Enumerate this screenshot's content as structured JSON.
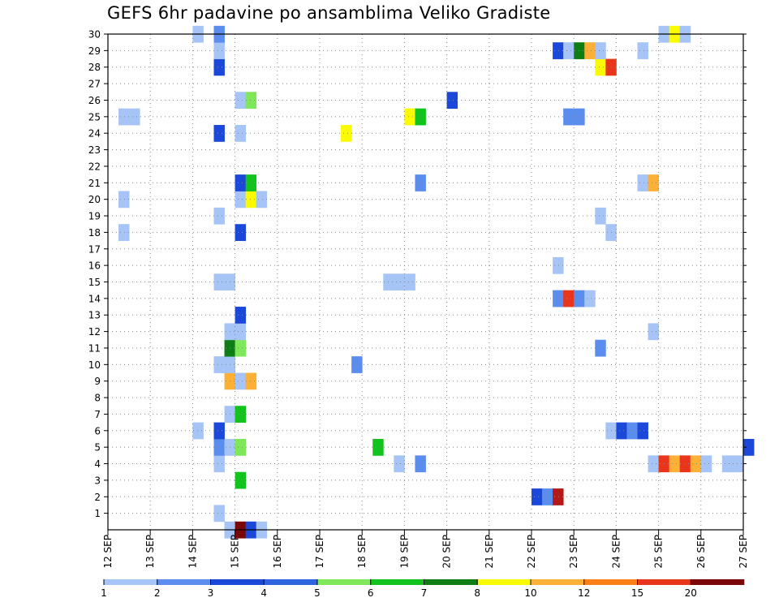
{
  "chart_data": {
    "type": "heatmap",
    "title": "GEFS 6hr padavine po ansamblima Veliko Gradiste",
    "xlabel": "",
    "ylabel": "",
    "x_tick_labels": [
      "12 SEP",
      "13 SEP",
      "14 SEP",
      "15 SEP",
      "16 SEP",
      "17 SEP",
      "18 SEP",
      "19 SEP",
      "20 SEP",
      "21 SEP",
      "22 SEP",
      "23 SEP",
      "24 SEP",
      "25 SEP",
      "26 SEP",
      "27 SEP"
    ],
    "y_tick_labels": [
      "1",
      "2",
      "3",
      "4",
      "5",
      "6",
      "7",
      "8",
      "9",
      "10",
      "11",
      "12",
      "13",
      "14",
      "15",
      "16",
      "17",
      "18",
      "19",
      "20",
      "21",
      "22",
      "23",
      "24",
      "25",
      "26",
      "27",
      "28",
      "29",
      "30"
    ],
    "y_range": [
      0,
      30
    ],
    "x_range_days": [
      0,
      15
    ],
    "step": "6hr",
    "grid": true,
    "legend_position": "bottom",
    "legend": {
      "labels": [
        "1",
        "2",
        "3",
        "4",
        "5",
        "6",
        "7",
        "8",
        "10",
        "12",
        "15",
        "20"
      ],
      "colors": [
        "#a6c4f5",
        "#5b8def",
        "#1b48d8",
        "#2e63e0",
        "#7ee85a",
        "#12c31e",
        "#0e7d14",
        "#fafa00",
        "#fcb035",
        "#fb7f14",
        "#e8351c",
        "#7a0808"
      ]
    },
    "levels": [
      {
        "label": "<1",
        "color": "#ffffff"
      },
      {
        "label": "1-2",
        "color": "#a6c4f5"
      },
      {
        "label": "2-3",
        "color": "#5b8def"
      },
      {
        "label": "3-4",
        "color": "#1b48d8"
      },
      {
        "label": "4-5",
        "color": "#7ee85a"
      },
      {
        "label": "5-6",
        "color": "#12c31e"
      },
      {
        "label": "6-7",
        "color": "#0e7d14"
      },
      {
        "label": "7-8",
        "color": "#fafa00"
      },
      {
        "label": "8-10",
        "color": "#fcb035"
      },
      {
        "label": "10-12",
        "color": "#fb7f14"
      },
      {
        "label": "12-15",
        "color": "#e8351c"
      },
      {
        "label": "15-20",
        "color": "#b41818"
      },
      {
        "label": ">20",
        "color": "#7a0808"
      }
    ],
    "cells": [
      {
        "m": 0,
        "d": "14 SEP",
        "h": 18,
        "lvl": 1
      },
      {
        "m": 0,
        "d": "15 SEP",
        "h": 0,
        "lvl": 12
      },
      {
        "m": 0,
        "d": "15 SEP",
        "h": 6,
        "lvl": 3
      },
      {
        "m": 0,
        "d": "15 SEP",
        "h": 12,
        "lvl": 1
      },
      {
        "m": 1,
        "d": "14 SEP",
        "h": 12,
        "lvl": 1
      },
      {
        "m": 2,
        "d": "22 SEP",
        "h": 0,
        "lvl": 3
      },
      {
        "m": 2,
        "d": "22 SEP",
        "h": 6,
        "lvl": 2
      },
      {
        "m": 2,
        "d": "22 SEP",
        "h": 12,
        "lvl": 11
      },
      {
        "m": 3,
        "d": "15 SEP",
        "h": 0,
        "lvl": 5
      },
      {
        "m": 4,
        "d": "14 SEP",
        "h": 12,
        "lvl": 1
      },
      {
        "m": 4,
        "d": "18 SEP",
        "h": 18,
        "lvl": 1
      },
      {
        "m": 4,
        "d": "19 SEP",
        "h": 6,
        "lvl": 2
      },
      {
        "m": 4,
        "d": "24 SEP",
        "h": 18,
        "lvl": 1
      },
      {
        "m": 4,
        "d": "25 SEP",
        "h": 0,
        "lvl": 10
      },
      {
        "m": 4,
        "d": "25 SEP",
        "h": 6,
        "lvl": 8
      },
      {
        "m": 4,
        "d": "25 SEP",
        "h": 12,
        "lvl": 10
      },
      {
        "m": 4,
        "d": "25 SEP",
        "h": 18,
        "lvl": 8
      },
      {
        "m": 4,
        "d": "26 SEP",
        "h": 0,
        "lvl": 1
      },
      {
        "m": 4,
        "d": "26 SEP",
        "h": 12,
        "lvl": 1
      },
      {
        "m": 4,
        "d": "26 SEP",
        "h": 18,
        "lvl": 1
      },
      {
        "m": 5,
        "d": "14 SEP",
        "h": 12,
        "lvl": 2
      },
      {
        "m": 5,
        "d": "14 SEP",
        "h": 18,
        "lvl": 1
      },
      {
        "m": 5,
        "d": "15 SEP",
        "h": 0,
        "lvl": 4
      },
      {
        "m": 5,
        "d": "18 SEP",
        "h": 6,
        "lvl": 5
      },
      {
        "m": 5,
        "d": "27 SEP",
        "h": 0,
        "lvl": 3
      },
      {
        "m": 6,
        "d": "14 SEP",
        "h": 0,
        "lvl": 1
      },
      {
        "m": 6,
        "d": "14 SEP",
        "h": 12,
        "lvl": 3
      },
      {
        "m": 6,
        "d": "23 SEP",
        "h": 18,
        "lvl": 1
      },
      {
        "m": 6,
        "d": "24 SEP",
        "h": 0,
        "lvl": 3
      },
      {
        "m": 6,
        "d": "24 SEP",
        "h": 6,
        "lvl": 2
      },
      {
        "m": 6,
        "d": "24 SEP",
        "h": 12,
        "lvl": 3
      },
      {
        "m": 7,
        "d": "14 SEP",
        "h": 18,
        "lvl": 1
      },
      {
        "m": 7,
        "d": "15 SEP",
        "h": 0,
        "lvl": 5
      },
      {
        "m": 9,
        "d": "14 SEP",
        "h": 18,
        "lvl": 8
      },
      {
        "m": 9,
        "d": "15 SEP",
        "h": 0,
        "lvl": 1
      },
      {
        "m": 9,
        "d": "15 SEP",
        "h": 6,
        "lvl": 8
      },
      {
        "m": 10,
        "d": "14 SEP",
        "h": 12,
        "lvl": 1
      },
      {
        "m": 10,
        "d": "14 SEP",
        "h": 18,
        "lvl": 1
      },
      {
        "m": 10,
        "d": "17 SEP",
        "h": 18,
        "lvl": 2
      },
      {
        "m": 11,
        "d": "14 SEP",
        "h": 18,
        "lvl": 6
      },
      {
        "m": 11,
        "d": "15 SEP",
        "h": 0,
        "lvl": 4
      },
      {
        "m": 11,
        "d": "23 SEP",
        "h": 12,
        "lvl": 2
      },
      {
        "m": 12,
        "d": "14 SEP",
        "h": 18,
        "lvl": 1
      },
      {
        "m": 12,
        "d": "15 SEP",
        "h": 0,
        "lvl": 1
      },
      {
        "m": 12,
        "d": "24 SEP",
        "h": 18,
        "lvl": 1
      },
      {
        "m": 13,
        "d": "15 SEP",
        "h": 0,
        "lvl": 3
      },
      {
        "m": 14,
        "d": "22 SEP",
        "h": 12,
        "lvl": 2
      },
      {
        "m": 14,
        "d": "22 SEP",
        "h": 18,
        "lvl": 10
      },
      {
        "m": 14,
        "d": "23 SEP",
        "h": 0,
        "lvl": 2
      },
      {
        "m": 14,
        "d": "23 SEP",
        "h": 6,
        "lvl": 1
      },
      {
        "m": 15,
        "d": "14 SEP",
        "h": 12,
        "lvl": 1
      },
      {
        "m": 15,
        "d": "14 SEP",
        "h": 18,
        "lvl": 1
      },
      {
        "m": 15,
        "d": "18 SEP",
        "h": 12,
        "lvl": 1
      },
      {
        "m": 15,
        "d": "18 SEP",
        "h": 18,
        "lvl": 1
      },
      {
        "m": 15,
        "d": "19 SEP",
        "h": 0,
        "lvl": 1
      },
      {
        "m": 16,
        "d": "22 SEP",
        "h": 12,
        "lvl": 1
      },
      {
        "m": 18,
        "d": "12 SEP",
        "h": 6,
        "lvl": 1
      },
      {
        "m": 18,
        "d": "15 SEP",
        "h": 0,
        "lvl": 3
      },
      {
        "m": 18,
        "d": "23 SEP",
        "h": 18,
        "lvl": 1
      },
      {
        "m": 19,
        "d": "14 SEP",
        "h": 12,
        "lvl": 1
      },
      {
        "m": 19,
        "d": "23 SEP",
        "h": 12,
        "lvl": 1
      },
      {
        "m": 20,
        "d": "12 SEP",
        "h": 6,
        "lvl": 1
      },
      {
        "m": 20,
        "d": "15 SEP",
        "h": 0,
        "lvl": 1
      },
      {
        "m": 20,
        "d": "15 SEP",
        "h": 6,
        "lvl": 7
      },
      {
        "m": 20,
        "d": "15 SEP",
        "h": 12,
        "lvl": 1
      },
      {
        "m": 21,
        "d": "15 SEP",
        "h": 0,
        "lvl": 3
      },
      {
        "m": 21,
        "d": "15 SEP",
        "h": 6,
        "lvl": 5
      },
      {
        "m": 21,
        "d": "19 SEP",
        "h": 6,
        "lvl": 2
      },
      {
        "m": 21,
        "d": "24 SEP",
        "h": 12,
        "lvl": 1
      },
      {
        "m": 21,
        "d": "24 SEP",
        "h": 18,
        "lvl": 8
      },
      {
        "m": 24,
        "d": "14 SEP",
        "h": 12,
        "lvl": 3
      },
      {
        "m": 24,
        "d": "15 SEP",
        "h": 0,
        "lvl": 1
      },
      {
        "m": 24,
        "d": "17 SEP",
        "h": 12,
        "lvl": 7
      },
      {
        "m": 25,
        "d": "12 SEP",
        "h": 6,
        "lvl": 1
      },
      {
        "m": 25,
        "d": "12 SEP",
        "h": 12,
        "lvl": 1
      },
      {
        "m": 25,
        "d": "19 SEP",
        "h": 0,
        "lvl": 7
      },
      {
        "m": 25,
        "d": "19 SEP",
        "h": 6,
        "lvl": 5
      },
      {
        "m": 25,
        "d": "22 SEP",
        "h": 18,
        "lvl": 2
      },
      {
        "m": 25,
        "d": "23 SEP",
        "h": 0,
        "lvl": 2
      },
      {
        "m": 26,
        "d": "15 SEP",
        "h": 0,
        "lvl": 1
      },
      {
        "m": 26,
        "d": "15 SEP",
        "h": 6,
        "lvl": 4
      },
      {
        "m": 26,
        "d": "20 SEP",
        "h": 0,
        "lvl": 3
      },
      {
        "m": 28,
        "d": "14 SEP",
        "h": 12,
        "lvl": 3
      },
      {
        "m": 28,
        "d": "23 SEP",
        "h": 12,
        "lvl": 7
      },
      {
        "m": 28,
        "d": "23 SEP",
        "h": 18,
        "lvl": 10
      },
      {
        "m": 29,
        "d": "14 SEP",
        "h": 12,
        "lvl": 1
      },
      {
        "m": 29,
        "d": "22 SEP",
        "h": 12,
        "lvl": 3
      },
      {
        "m": 29,
        "d": "22 SEP",
        "h": 18,
        "lvl": 1
      },
      {
        "m": 29,
        "d": "23 SEP",
        "h": 0,
        "lvl": 6
      },
      {
        "m": 29,
        "d": "23 SEP",
        "h": 6,
        "lvl": 8
      },
      {
        "m": 29,
        "d": "23 SEP",
        "h": 12,
        "lvl": 1
      },
      {
        "m": 29,
        "d": "24 SEP",
        "h": 12,
        "lvl": 1
      },
      {
        "m": 30,
        "d": "14 SEP",
        "h": 0,
        "lvl": 1
      },
      {
        "m": 30,
        "d": "14 SEP",
        "h": 12,
        "lvl": 2
      },
      {
        "m": 30,
        "d": "25 SEP",
        "h": 0,
        "lvl": 1
      },
      {
        "m": 30,
        "d": "25 SEP",
        "h": 6,
        "lvl": 7
      },
      {
        "m": 30,
        "d": "25 SEP",
        "h": 12,
        "lvl": 1
      }
    ]
  }
}
